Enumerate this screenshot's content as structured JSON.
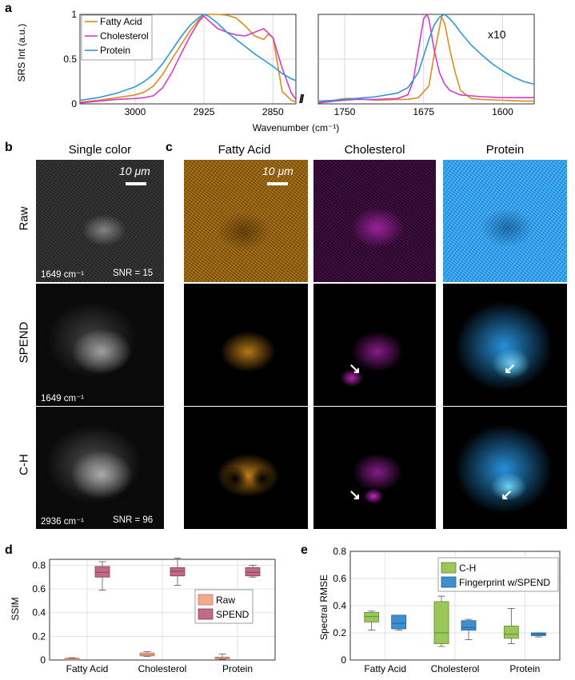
{
  "panel_labels": {
    "a": "a",
    "b": "b",
    "c": "c",
    "d": "d",
    "e": "e"
  },
  "chart_data": [
    {
      "id": "a-left",
      "type": "line",
      "ylabel": "SRS Int (a.u.)",
      "xlabel": "Wavenumber (cm⁻¹)",
      "xlim": [
        3060,
        2825
      ],
      "ylim": [
        0,
        1
      ],
      "xticks": [
        "3000",
        "2925",
        "2850"
      ],
      "yticks": [
        "0",
        "0.5",
        "1"
      ],
      "grid": true,
      "legend_position": "top-left",
      "series": [
        {
          "name": "Fatty Acid",
          "color": "#e08a1e",
          "x": [
            3060,
            3040,
            3020,
            3000,
            2990,
            2980,
            2970,
            2960,
            2950,
            2940,
            2930,
            2925,
            2920,
            2910,
            2900,
            2890,
            2880,
            2870,
            2860,
            2855,
            2850,
            2845,
            2840,
            2830,
            2825
          ],
          "y": [
            0.02,
            0.04,
            0.07,
            0.1,
            0.13,
            0.2,
            0.33,
            0.5,
            0.66,
            0.82,
            0.95,
            1.0,
            1.0,
            1.0,
            0.99,
            0.96,
            0.87,
            0.76,
            0.72,
            0.78,
            0.74,
            0.45,
            0.14,
            0.04,
            0.02
          ]
        },
        {
          "name": "Cholesterol",
          "color": "#d63cc9",
          "x": [
            3060,
            3040,
            3020,
            3000,
            2990,
            2980,
            2970,
            2960,
            2950,
            2940,
            2930,
            2925,
            2920,
            2910,
            2900,
            2890,
            2880,
            2870,
            2860,
            2850,
            2840,
            2830,
            2825
          ],
          "y": [
            0.01,
            0.03,
            0.05,
            0.06,
            0.07,
            0.09,
            0.18,
            0.35,
            0.56,
            0.76,
            0.93,
            0.98,
            0.93,
            0.84,
            0.8,
            0.77,
            0.76,
            0.8,
            0.84,
            0.74,
            0.4,
            0.12,
            0.05
          ]
        },
        {
          "name": "Protein",
          "color": "#2f97d8",
          "x": [
            3060,
            3040,
            3020,
            3000,
            2990,
            2980,
            2970,
            2960,
            2950,
            2940,
            2930,
            2925,
            2920,
            2910,
            2900,
            2890,
            2880,
            2870,
            2860,
            2850,
            2840,
            2830,
            2825
          ],
          "y": [
            0.04,
            0.07,
            0.12,
            0.19,
            0.25,
            0.33,
            0.45,
            0.6,
            0.75,
            0.88,
            0.97,
            1.0,
            0.98,
            0.9,
            0.8,
            0.72,
            0.64,
            0.56,
            0.49,
            0.42,
            0.34,
            0.28,
            0.26
          ]
        }
      ]
    },
    {
      "id": "a-right",
      "type": "line",
      "annotation": "x10",
      "xlim": [
        1775,
        1570
      ],
      "ylim": [
        0,
        1
      ],
      "xticks": [
        "1750",
        "1675",
        "1600"
      ],
      "grid": true,
      "series": [
        {
          "name": "Fatty Acid",
          "color": "#e08a1e",
          "x": [
            1775,
            1760,
            1750,
            1740,
            1720,
            1700,
            1690,
            1680,
            1670,
            1665,
            1660,
            1658,
            1655,
            1650,
            1645,
            1640,
            1630,
            1620,
            1600,
            1580,
            1570
          ],
          "y": [
            0.02,
            0.04,
            0.06,
            0.06,
            0.04,
            0.05,
            0.05,
            0.07,
            0.2,
            0.55,
            0.85,
            0.97,
            0.9,
            0.6,
            0.35,
            0.15,
            0.06,
            0.05,
            0.04,
            0.03,
            0.03
          ]
        },
        {
          "name": "Cholesterol",
          "color": "#d63cc9",
          "x": [
            1775,
            1760,
            1750,
            1740,
            1720,
            1700,
            1690,
            1685,
            1680,
            1675,
            1672,
            1670,
            1665,
            1660,
            1655,
            1650,
            1640,
            1620,
            1600,
            1580,
            1570
          ],
          "y": [
            0.01,
            0.03,
            0.04,
            0.05,
            0.05,
            0.06,
            0.1,
            0.25,
            0.6,
            0.95,
            1.0,
            0.95,
            0.6,
            0.35,
            0.22,
            0.15,
            0.1,
            0.08,
            0.07,
            0.07,
            0.07
          ]
        },
        {
          "name": "Protein",
          "color": "#2f97d8",
          "x": [
            1775,
            1760,
            1750,
            1740,
            1720,
            1700,
            1690,
            1680,
            1670,
            1665,
            1660,
            1655,
            1650,
            1645,
            1640,
            1630,
            1620,
            1610,
            1600,
            1590,
            1580,
            1570
          ],
          "y": [
            0.03,
            0.04,
            0.05,
            0.06,
            0.08,
            0.12,
            0.18,
            0.35,
            0.72,
            0.88,
            0.97,
            1.0,
            0.95,
            0.88,
            0.8,
            0.66,
            0.55,
            0.45,
            0.37,
            0.3,
            0.25,
            0.22
          ]
        }
      ]
    },
    {
      "id": "d",
      "type": "box",
      "ylabel": "SSIM",
      "ylim": [
        0,
        0.85
      ],
      "yticks": [
        "0",
        "0.2",
        "0.4",
        "0.6",
        "0.8"
      ],
      "categories": [
        "Fatty Acid",
        "Cholesterol",
        "Protein"
      ],
      "legend_position": "right",
      "series": [
        {
          "name": "Raw",
          "color": "#f4a98a",
          "edge": "#c07a60",
          "boxes": [
            {
              "min": 0.005,
              "q1": 0.008,
              "median": 0.01,
              "q3": 0.015,
              "max": 0.02
            },
            {
              "min": 0.03,
              "q1": 0.035,
              "median": 0.045,
              "q3": 0.06,
              "max": 0.07
            },
            {
              "min": 0.005,
              "q1": 0.01,
              "median": 0.015,
              "q3": 0.025,
              "max": 0.05
            }
          ]
        },
        {
          "name": "SPEND",
          "color": "#c06a88",
          "edge": "#8a3a58",
          "boxes": [
            {
              "min": 0.59,
              "q1": 0.7,
              "median": 0.74,
              "q3": 0.79,
              "max": 0.83
            },
            {
              "min": 0.63,
              "q1": 0.71,
              "median": 0.75,
              "q3": 0.78,
              "max": 0.86
            },
            {
              "min": 0.7,
              "q1": 0.71,
              "median": 0.74,
              "q3": 0.78,
              "max": 0.8
            }
          ]
        }
      ]
    },
    {
      "id": "e",
      "type": "box",
      "ylabel": "Spectral RMSE",
      "ylim": [
        0,
        0.8
      ],
      "yticks": [
        "0",
        "0.2",
        "0.4",
        "0.6",
        "0.8"
      ],
      "categories": [
        "Fatty Acid",
        "Cholesterol",
        "Protein"
      ],
      "legend_position": "top-right",
      "series": [
        {
          "name": "C-H",
          "color": "#9bc75a",
          "edge": "#5e8a2a",
          "boxes": [
            {
              "min": 0.22,
              "q1": 0.28,
              "median": 0.32,
              "q3": 0.35,
              "max": 0.36
            },
            {
              "min": 0.1,
              "q1": 0.12,
              "median": 0.2,
              "q3": 0.43,
              "max": 0.47
            },
            {
              "min": 0.12,
              "q1": 0.16,
              "median": 0.19,
              "q3": 0.25,
              "max": 0.38
            }
          ]
        },
        {
          "name": "Fingerprint w/SPEND",
          "color": "#3f8fd0",
          "edge": "#1e5e95",
          "boxes": [
            {
              "min": 0.22,
              "q1": 0.23,
              "median": 0.27,
              "q3": 0.33,
              "max": 0.33
            },
            {
              "min": 0.15,
              "q1": 0.22,
              "median": 0.24,
              "q3": 0.29,
              "max": 0.3
            },
            {
              "min": 0.17,
              "q1": 0.18,
              "median": 0.19,
              "q3": 0.2,
              "max": 0.2
            }
          ]
        }
      ]
    }
  ],
  "images": {
    "b_header": "Single color",
    "c_headers": [
      "Fatty Acid",
      "Cholesterol",
      "Protein"
    ],
    "row_labels": [
      "Raw",
      "SPEND",
      "C-H"
    ],
    "scale_bar_label": "10 μm",
    "raw_wavenumber": "1649 cm⁻¹",
    "raw_snr": "SNR = 15",
    "spend_wavenumber": "1649 cm⁻¹",
    "ch_wavenumber": "2936 cm⁻¹",
    "ch_snr": "SNR = 96",
    "colors": {
      "fatty_acid": "#f0a020",
      "cholesterol": "#e030e0",
      "protein": "#2aa0f0",
      "gray": "#ffffff"
    }
  }
}
